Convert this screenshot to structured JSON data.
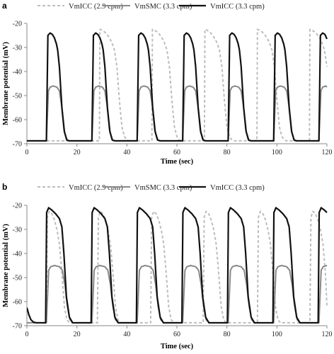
{
  "chart_data": [
    {
      "panel": "a",
      "type": "line",
      "title": "",
      "xlabel": "Time (sec)",
      "ylabel": "Membrane potential (mV)",
      "xlim": [
        0,
        120
      ],
      "ylim": [
        -70,
        -20
      ],
      "xticks": [
        0,
        20,
        40,
        60,
        80,
        100,
        120
      ],
      "yticks": [
        -20,
        -30,
        -40,
        -50,
        -60,
        -70
      ],
      "grid": false,
      "legend_position": "top",
      "series": [
        {
          "name": "VmICC (2.9 cpm)",
          "style": "dashed",
          "color": "#bdbdbd",
          "x": [
            0,
            29.0,
            29.2,
            30.0,
            31,
            32,
            33,
            34,
            35,
            36,
            37,
            38,
            39,
            40,
            41,
            42,
            42.5,
            43.5,
            45.0,
            50.0,
            50.2,
            51.0,
            52,
            53,
            54,
            55,
            56,
            57,
            58,
            59,
            60,
            61,
            62,
            63,
            63.5,
            64.5,
            66.0,
            71.0,
            71.2,
            72.0,
            73,
            74,
            75,
            76,
            77,
            78,
            79,
            80,
            81,
            82,
            83,
            84,
            84.5,
            85.5,
            87.0,
            92.0,
            92.2,
            93.0,
            94,
            95,
            96,
            97,
            98,
            99,
            100,
            101,
            102,
            103,
            104,
            105,
            105.5,
            106.5,
            108.0,
            113.0,
            113.2,
            114.0,
            115,
            116,
            117,
            118,
            119,
            120
          ],
          "y": [
            -68.8,
            -68.8,
            -22.5,
            -22.8,
            -23.5,
            -24.5,
            -26.0,
            -28.0,
            -31.0,
            -38.0,
            -52.0,
            -63.0,
            -67.0,
            -68.5,
            -68.8,
            -68.8,
            -68.8,
            -68.8,
            -68.8,
            -68.8,
            -22.5,
            -22.8,
            -23.5,
            -24.5,
            -26.0,
            -28.0,
            -31.0,
            -38.0,
            -52.0,
            -63.0,
            -67.0,
            -68.5,
            -68.8,
            -68.8,
            -68.8,
            -68.8,
            -68.8,
            -68.8,
            -22.5,
            -22.8,
            -23.5,
            -24.5,
            -26.0,
            -28.0,
            -31.0,
            -38.0,
            -52.0,
            -63.0,
            -67.0,
            -68.5,
            -68.8,
            -68.8,
            -68.8,
            -68.8,
            -68.8,
            -68.8,
            -22.5,
            -22.8,
            -23.5,
            -24.5,
            -26.0,
            -28.0,
            -31.0,
            -38.0,
            -52.0,
            -63.0,
            -67.0,
            -68.5,
            -68.8,
            -68.8,
            -68.8,
            -68.8,
            -68.8,
            -68.8,
            -22.5,
            -22.8,
            -23.5,
            -24.5,
            -26.0,
            -28.0,
            -31.0,
            -38.0
          ]
        },
        {
          "name": "VmSMC (3.3 cpm)",
          "style": "solid",
          "color": "#888888",
          "x": [
            0,
            7.8,
            8.6,
            9.3,
            10.5,
            12.0,
            13.0,
            14.0,
            14.8,
            15.8,
            17.0,
            26.0,
            26.8,
            27.5,
            28.7,
            30.2,
            31.2,
            32.2,
            33.0,
            34.0,
            35.2,
            44.1,
            44.9,
            45.6,
            46.8,
            48.3,
            49.3,
            50.3,
            51.1,
            52.1,
            53.3,
            62.3,
            63.1,
            63.8,
            65.0,
            66.5,
            67.5,
            68.5,
            69.3,
            70.3,
            71.5,
            80.5,
            81.3,
            82.0,
            83.2,
            84.7,
            85.7,
            86.7,
            87.5,
            88.5,
            89.7,
            98.7,
            99.5,
            100.2,
            101.4,
            102.9,
            103.9,
            104.9,
            105.7,
            106.7,
            107.9,
            116.8,
            117.6,
            118.3,
            119.5,
            120
          ],
          "y": [
            -68.8,
            -68.8,
            -48.0,
            -46.5,
            -46.0,
            -46.5,
            -48.0,
            -55.0,
            -64.0,
            -68.2,
            -68.8,
            -68.8,
            -48.0,
            -46.5,
            -46.0,
            -46.5,
            -48.0,
            -55.0,
            -64.0,
            -68.2,
            -68.8,
            -68.8,
            -48.0,
            -46.5,
            -46.0,
            -46.5,
            -48.0,
            -55.0,
            -64.0,
            -68.2,
            -68.8,
            -68.8,
            -48.0,
            -46.5,
            -46.0,
            -46.5,
            -48.0,
            -55.0,
            -64.0,
            -68.2,
            -68.8,
            -68.8,
            -48.0,
            -46.5,
            -46.0,
            -46.5,
            -48.0,
            -55.0,
            -64.0,
            -68.2,
            -68.8,
            -68.8,
            -48.0,
            -46.5,
            -46.0,
            -46.5,
            -48.0,
            -55.0,
            -64.0,
            -68.2,
            -68.8,
            -68.8,
            -48.0,
            -46.5,
            -46.0,
            -46.5
          ]
        },
        {
          "name": "VmICC (3.3 cpm)",
          "style": "solid",
          "color": "#111111",
          "x": [
            0,
            7.8,
            8.4,
            9.3,
            10.2,
            11.0,
            11.8,
            12.3,
            13.0,
            14.0,
            15.0,
            16.0,
            17.0,
            26.0,
            26.6,
            27.5,
            28.4,
            29.2,
            30.0,
            30.5,
            31.2,
            32.2,
            33.2,
            34.2,
            35.2,
            44.1,
            44.7,
            45.6,
            46.5,
            47.3,
            48.1,
            48.6,
            49.3,
            50.3,
            51.3,
            52.3,
            53.3,
            62.3,
            62.9,
            63.8,
            64.7,
            65.5,
            66.3,
            66.8,
            67.5,
            68.5,
            69.5,
            70.5,
            71.5,
            80.5,
            81.1,
            82.0,
            82.9,
            83.7,
            84.5,
            85.0,
            85.7,
            86.7,
            87.7,
            88.7,
            89.7,
            98.7,
            99.3,
            100.2,
            101.1,
            101.9,
            102.7,
            103.2,
            103.9,
            104.9,
            105.9,
            106.9,
            107.9,
            116.8,
            117.4,
            118.3,
            119.2,
            120
          ],
          "y": [
            -68.8,
            -68.8,
            -25.0,
            -24.0,
            -24.6,
            -26.0,
            -28.5,
            -31.0,
            -38.0,
            -55.0,
            -65.0,
            -68.5,
            -68.8,
            -68.8,
            -25.0,
            -24.0,
            -24.6,
            -26.0,
            -28.5,
            -31.0,
            -38.0,
            -55.0,
            -65.0,
            -68.5,
            -68.8,
            -68.8,
            -25.0,
            -24.0,
            -24.6,
            -26.0,
            -28.5,
            -31.0,
            -38.0,
            -55.0,
            -65.0,
            -68.5,
            -68.8,
            -68.8,
            -25.0,
            -24.0,
            -24.6,
            -26.0,
            -28.5,
            -31.0,
            -38.0,
            -55.0,
            -65.0,
            -68.5,
            -68.8,
            -68.8,
            -25.0,
            -24.0,
            -24.6,
            -26.0,
            -28.5,
            -31.0,
            -38.0,
            -55.0,
            -65.0,
            -68.5,
            -68.8,
            -68.8,
            -25.0,
            -24.0,
            -24.6,
            -26.0,
            -28.5,
            -31.0,
            -38.0,
            -55.0,
            -65.0,
            -68.5,
            -68.8,
            -68.8,
            -25.0,
            -24.0,
            -24.6,
            -26.5
          ]
        }
      ]
    },
    {
      "panel": "b",
      "type": "line",
      "title": "",
      "xlabel": "Time (sec)",
      "ylabel": "Membrane potential (mV)",
      "xlim": [
        0,
        120
      ],
      "ylim": [
        -70,
        -20
      ],
      "xticks": [
        0,
        20,
        40,
        60,
        80,
        100,
        120
      ],
      "yticks": [
        -20,
        -30,
        -40,
        -50,
        -60,
        -70
      ],
      "grid": false,
      "legend_position": "top",
      "series": [
        {
          "name": "VmICC (2.9 cpm)",
          "style": "dashed",
          "color": "#bdbdbd",
          "x": [
            0,
            7.8,
            8.2,
            9.0,
            10.0,
            11.0,
            12.0,
            13.0,
            14.0,
            15.0,
            16.0,
            17.0,
            28.2,
            28.6,
            29.4,
            30.4,
            31.4,
            32.4,
            33.4,
            34.4,
            35.4,
            36.4,
            37.4,
            49.5,
            49.9,
            50.7,
            51.7,
            52.7,
            53.7,
            54.7,
            55.7,
            56.7,
            57.7,
            58.7,
            70.5,
            70.9,
            71.7,
            72.7,
            73.7,
            74.7,
            75.7,
            76.7,
            77.7,
            78.7,
            79.7,
            92.2,
            92.6,
            93.4,
            94.4,
            95.4,
            96.4,
            97.4,
            98.4,
            99.4,
            100.4,
            101.4,
            113.2,
            113.6,
            114.4,
            115.4,
            116.4,
            117.4,
            118.4,
            119.4,
            120
          ],
          "y": [
            -68.8,
            -68.8,
            -25.0,
            -22.5,
            -23.5,
            -26.0,
            -30.0,
            -36.0,
            -48.0,
            -62.0,
            -67.5,
            -68.8,
            -68.8,
            -25.0,
            -22.5,
            -23.5,
            -26.0,
            -30.0,
            -36.0,
            -48.0,
            -62.0,
            -67.5,
            -68.8,
            -68.8,
            -25.0,
            -22.5,
            -23.5,
            -26.0,
            -30.0,
            -36.0,
            -48.0,
            -62.0,
            -67.5,
            -68.8,
            -68.8,
            -25.0,
            -22.5,
            -23.5,
            -26.0,
            -30.0,
            -36.0,
            -48.0,
            -62.0,
            -67.5,
            -68.8,
            -68.8,
            -25.0,
            -22.5,
            -23.5,
            -26.0,
            -30.0,
            -36.0,
            -48.0,
            -62.0,
            -67.5,
            -68.8,
            -68.8,
            -25.0,
            -22.5,
            -23.5,
            -26.0,
            -30.0,
            -36.0,
            -48.0,
            -62.0
          ]
        },
        {
          "name": "VmSMC (3.3 cpm)",
          "style": "solid",
          "color": "#888888",
          "x": [
            0,
            7.8,
            8.7,
            9.5,
            11.0,
            13.0,
            14.2,
            15.2,
            16.2,
            17.2,
            18.5,
            26.0,
            26.9,
            27.7,
            29.2,
            31.2,
            32.4,
            33.4,
            34.4,
            35.4,
            36.7,
            44.1,
            45.0,
            45.8,
            47.3,
            49.3,
            50.5,
            51.5,
            52.5,
            53.5,
            54.8,
            62.3,
            63.2,
            64.0,
            65.5,
            67.5,
            68.7,
            69.7,
            70.7,
            71.7,
            73.0,
            80.5,
            81.4,
            82.2,
            83.7,
            85.7,
            86.9,
            87.9,
            88.9,
            89.9,
            91.2,
            98.7,
            99.6,
            100.4,
            101.9,
            103.9,
            105.1,
            106.1,
            107.1,
            108.1,
            109.4,
            116.8,
            117.7,
            118.5,
            120
          ],
          "y": [
            -68.8,
            -68.8,
            -47.0,
            -45.5,
            -45.0,
            -45.5,
            -47.0,
            -53.0,
            -62.0,
            -67.5,
            -68.8,
            -68.8,
            -47.0,
            -45.5,
            -45.0,
            -45.5,
            -47.0,
            -53.0,
            -62.0,
            -67.5,
            -68.8,
            -68.8,
            -47.0,
            -45.5,
            -45.0,
            -45.5,
            -47.0,
            -53.0,
            -62.0,
            -67.5,
            -68.8,
            -68.8,
            -47.0,
            -45.5,
            -45.0,
            -45.5,
            -47.0,
            -53.0,
            -62.0,
            -67.5,
            -68.8,
            -68.8,
            -47.0,
            -45.5,
            -45.0,
            -45.5,
            -47.0,
            -53.0,
            -62.0,
            -67.5,
            -68.8,
            -68.8,
            -47.0,
            -45.5,
            -45.0,
            -45.5,
            -47.0,
            -53.0,
            -62.0,
            -67.5,
            -68.8,
            -68.8,
            -47.0,
            -45.5,
            -45.0
          ]
        },
        {
          "name": "VmICC (3.3 cpm)",
          "style": "solid",
          "color": "#111111",
          "x": [
            0,
            0.8,
            1.6,
            2.6,
            3.8,
            7.5,
            7.9,
            8.7,
            10.0,
            11.5,
            13.0,
            14.0,
            14.8,
            15.8,
            17.0,
            18.3,
            25.7,
            26.1,
            26.9,
            28.2,
            29.7,
            31.2,
            32.2,
            33.0,
            34.0,
            35.2,
            36.5,
            43.8,
            44.2,
            45.0,
            46.3,
            47.8,
            49.3,
            50.3,
            51.1,
            52.1,
            53.3,
            54.6,
            62.0,
            62.4,
            63.2,
            64.5,
            66.0,
            67.5,
            68.5,
            69.3,
            70.3,
            71.5,
            72.8,
            80.2,
            80.6,
            81.4,
            82.7,
            84.2,
            85.7,
            86.7,
            87.5,
            88.5,
            89.7,
            91.0,
            98.4,
            98.8,
            99.6,
            100.9,
            102.4,
            103.9,
            104.9,
            105.7,
            106.7,
            107.9,
            109.2,
            116.5,
            116.9,
            117.7,
            119.0,
            120
          ],
          "y": [
            -62.5,
            -65.5,
            -67.5,
            -68.5,
            -68.8,
            -68.8,
            -23.0,
            -21.0,
            -22.0,
            -23.5,
            -25.5,
            -29.0,
            -40.0,
            -58.0,
            -66.5,
            -68.8,
            -68.8,
            -23.0,
            -21.0,
            -22.0,
            -23.5,
            -25.5,
            -29.0,
            -40.0,
            -58.0,
            -66.5,
            -68.8,
            -68.8,
            -23.0,
            -21.0,
            -22.0,
            -23.5,
            -25.5,
            -29.0,
            -40.0,
            -58.0,
            -66.5,
            -68.8,
            -68.8,
            -23.0,
            -21.0,
            -22.0,
            -23.5,
            -25.5,
            -29.0,
            -40.0,
            -58.0,
            -66.5,
            -68.8,
            -68.8,
            -23.0,
            -21.0,
            -22.0,
            -23.5,
            -25.5,
            -29.0,
            -40.0,
            -58.0,
            -66.5,
            -68.8,
            -68.8,
            -23.0,
            -21.0,
            -22.0,
            -23.5,
            -25.5,
            -29.0,
            -40.0,
            -58.0,
            -66.5,
            -68.8,
            -68.8,
            -23.0,
            -21.0,
            -22.0,
            -23.0
          ]
        }
      ]
    }
  ]
}
